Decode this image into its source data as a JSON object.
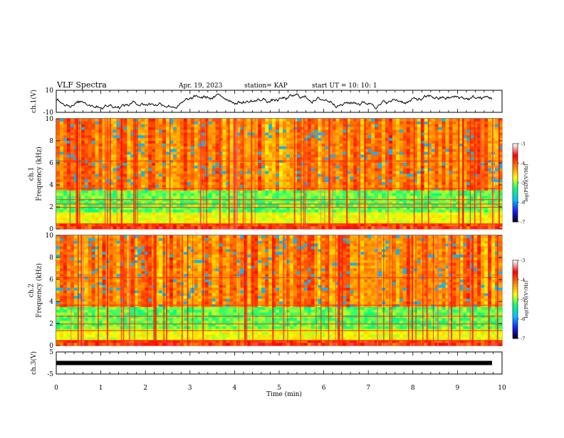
{
  "header": {
    "title": "VLF Spectra",
    "date": "Apr. 19, 2023",
    "station": "station= KAP",
    "start": "start  UT  =   10: 10: 1"
  },
  "chart_data": [
    {
      "type": "line",
      "name": "ch.1 waveform",
      "ylabel": "ch.1(V)",
      "ylim": [
        -10,
        10
      ],
      "yticks": [
        "10",
        "-10"
      ],
      "xlim": [
        0,
        10
      ]
    },
    {
      "type": "heatmap",
      "name": "ch.1 spectrogram",
      "ylabel": "ch.1\nFrequency (kHz)",
      "ylim": [
        0,
        10
      ],
      "yticks": [
        "0",
        "2",
        "4",
        "6",
        "8",
        "10"
      ],
      "xlim": [
        0,
        10
      ],
      "colorbar": {
        "label": "log(PSD)(V²/Hz)",
        "ticks": [
          "-3",
          "-4",
          "-5",
          "-6",
          "-7"
        ],
        "range": [
          -7,
          -3
        ]
      }
    },
    {
      "type": "heatmap",
      "name": "ch.2 spectrogram",
      "ylabel": "ch.2\nFrequency (kHz)",
      "ylim": [
        0,
        10
      ],
      "yticks": [
        "0",
        "2",
        "4",
        "6",
        "8",
        "10"
      ],
      "xlim": [
        0,
        10
      ],
      "colorbar": {
        "label": "log(PSD)(V²/Hz)",
        "ticks": [
          "-3",
          "-4",
          "-5",
          "-6",
          "-7"
        ],
        "range": [
          -7,
          -3
        ]
      }
    },
    {
      "type": "line",
      "name": "ch.3 waveform",
      "ylabel": "ch.3(V)",
      "ylim": [
        -5,
        5
      ],
      "yticks": [
        "5",
        "-5"
      ],
      "xlim": [
        0,
        10
      ],
      "series": [
        {
          "values_note_level": 0
        }
      ]
    }
  ],
  "xaxis": {
    "label": "Time (min)",
    "ticks": [
      "0",
      "1",
      "2",
      "3",
      "4",
      "5",
      "6",
      "7",
      "8",
      "9",
      "10"
    ]
  },
  "colors": {
    "frame": "#000000",
    "colormap": [
      "#000000",
      "#1a1aff",
      "#00bfff",
      "#00ff80",
      "#ffff00",
      "#ff8000",
      "#ff0000",
      "#ffffff"
    ]
  }
}
